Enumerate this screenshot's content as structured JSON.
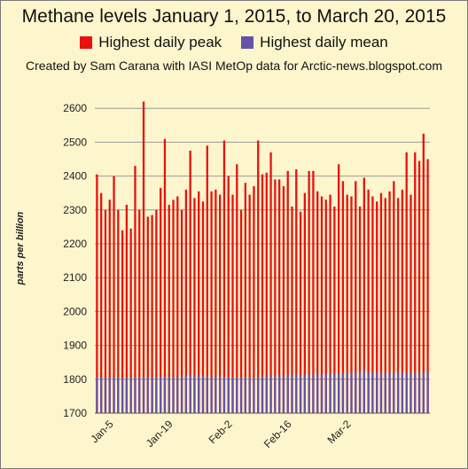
{
  "chart_data": {
    "type": "bar",
    "title": "Methane levels January 1, 2015, to March  20, 2015",
    "subtitle": "Created by Sam Carana with IASI MetOp data for Arctic-news.blogspot.com",
    "ylabel": "parts per billion",
    "xlabel": "",
    "ylim": [
      1700,
      2700
    ],
    "yticks": [
      1700,
      1800,
      1900,
      2000,
      2100,
      2200,
      2300,
      2400,
      2500,
      2600
    ],
    "grid": true,
    "legend_position": "top-center",
    "x_tick_labels": [
      {
        "label": "Jan-5",
        "day_index": 4
      },
      {
        "label": "Jan-19",
        "day_index": 18
      },
      {
        "label": "Feb-2",
        "day_index": 32
      },
      {
        "label": "Feb-16",
        "day_index": 46
      },
      {
        "label": "Mar-2",
        "day_index": 60
      }
    ],
    "series": [
      {
        "name": "Highest daily peak",
        "color": "#e8110f",
        "values": [
          2405,
          2350,
          2300,
          2330,
          2400,
          2300,
          2240,
          2315,
          2245,
          2430,
          2300,
          2620,
          2280,
          2285,
          2300,
          2365,
          2510,
          2315,
          2330,
          2340,
          2300,
          2360,
          2475,
          2335,
          2355,
          2325,
          2490,
          2355,
          2360,
          2345,
          2505,
          2400,
          2345,
          2435,
          2300,
          2380,
          2345,
          2370,
          2505,
          2405,
          2410,
          2470,
          2390,
          2390,
          2370,
          2415,
          2310,
          2420,
          2295,
          2350,
          2415,
          2415,
          2355,
          2340,
          2330,
          2345,
          2310,
          2435,
          2385,
          2345,
          2340,
          2385,
          2310,
          2395,
          2360,
          2340,
          2325,
          2350,
          2335,
          2355,
          2385,
          2335,
          2360,
          2470,
          2345,
          2470,
          2445,
          2525,
          2450
        ]
      },
      {
        "name": "Highest daily mean",
        "color": "#6652a8",
        "values": [
          1805,
          1805,
          1807,
          1805,
          1806,
          1805,
          1803,
          1804,
          1805,
          1806,
          1805,
          1807,
          1804,
          1806,
          1806,
          1808,
          1808,
          1808,
          1807,
          1808,
          1809,
          1810,
          1810,
          1809,
          1810,
          1809,
          1809,
          1808,
          1808,
          1808,
          1807,
          1807,
          1806,
          1806,
          1805,
          1806,
          1806,
          1807,
          1807,
          1808,
          1809,
          1810,
          1811,
          1812,
          1812,
          1813,
          1813,
          1813,
          1813,
          1814,
          1814,
          1814,
          1815,
          1815,
          1815,
          1816,
          1816,
          1817,
          1818,
          1820,
          1819,
          1820,
          1823,
          1826,
          1821,
          1822,
          1821,
          1820,
          1820,
          1820,
          1820,
          1821,
          1820,
          1820,
          1820,
          1820,
          1821,
          1822,
          1821
        ]
      }
    ]
  }
}
